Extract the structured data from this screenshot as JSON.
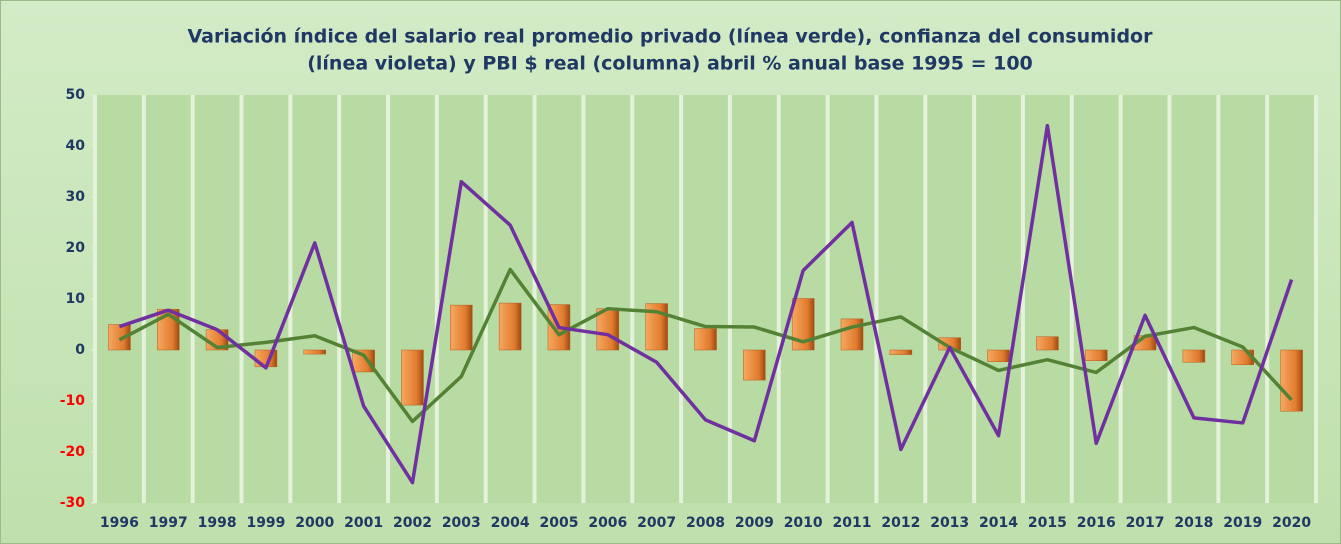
{
  "chart_data": {
    "type": "combo",
    "title": [
      "Variación índice del salario real promedio privado (línea verde), confianza del consumidor",
      "(línea violeta) y PBI $ real (columna)  abril % anual base 1995 = 100"
    ],
    "categories": [
      "1996",
      "1997",
      "1998",
      "1999",
      "2000",
      "2001",
      "2002",
      "2003",
      "2004",
      "2005",
      "2006",
      "2007",
      "2008",
      "2009",
      "2010",
      "2011",
      "2012",
      "2013",
      "2014",
      "2015",
      "2016",
      "2017",
      "2018",
      "2019",
      "2020"
    ],
    "series": [
      {
        "type": "bar",
        "color": "#e07b2e",
        "values": [
          5,
          8,
          4,
          -3.3,
          -0.8,
          -4.3,
          -10.8,
          8.8,
          9.2,
          8.9,
          8.1,
          9.1,
          4.2,
          -5.9,
          10.1,
          6.1,
          -0.9,
          2.4,
          -2.3,
          2.6,
          -2.1,
          2.8,
          -2.4,
          -2.9,
          -12
        ]
      },
      {
        "type": "line",
        "color": "#548235",
        "values": [
          2,
          7,
          0.5,
          1.5,
          2.8,
          -1,
          -14,
          -5.2,
          15.8,
          3,
          8.1,
          7.5,
          4.6,
          4.5,
          1.6,
          4.5,
          6.5,
          0.5,
          -4,
          -1.9,
          -4.4,
          2.7,
          4.4,
          0.6,
          -9.8
        ]
      },
      {
        "type": "line",
        "color": "#7030a0",
        "values": [
          4.6,
          7.8,
          4,
          -3.5,
          21,
          -11,
          -26,
          33,
          24.5,
          4.4,
          3,
          -2.4,
          -13.7,
          -17.8,
          15.6,
          25,
          -19.5,
          0.5,
          -16.8,
          44,
          -18.3,
          6.8,
          -13.3,
          -14.3,
          13.8
        ]
      }
    ],
    "ylim": [
      -30,
      50
    ],
    "yticks": [
      -30,
      -20,
      -10,
      0,
      10,
      20,
      30,
      40,
      50
    ],
    "tick_color": "#1f3864",
    "negative_tick_color": "#ff0000",
    "title_color": "#1f3864"
  }
}
